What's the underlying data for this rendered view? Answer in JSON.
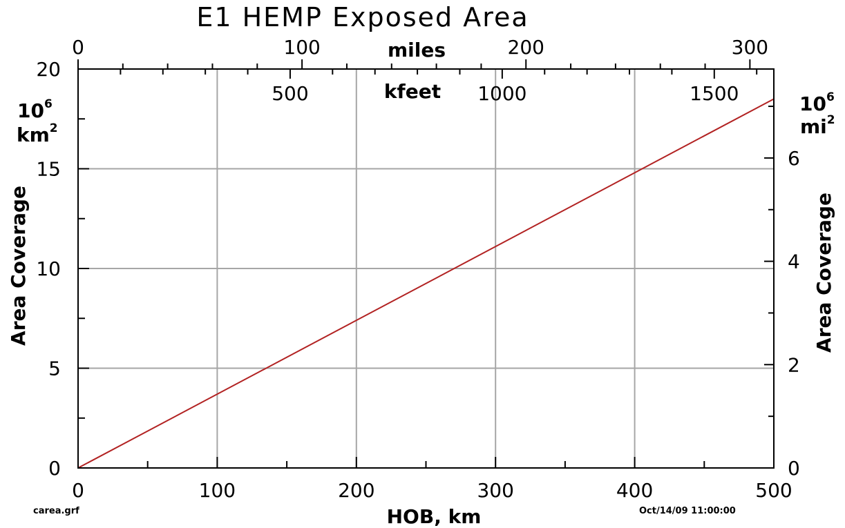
{
  "chart_data": {
    "type": "line",
    "title": "E1 HEMP Exposed Area",
    "xlabel": "HOB, km",
    "ylabel": "Area Coverage",
    "ylabel_right": "Area Coverage",
    "y_unit_base": "10",
    "y_unit_exp": "6",
    "y_unit_left": "km",
    "y_unit_right": "mi",
    "y_unit_sq": "2",
    "xlim": [
      0,
      500
    ],
    "ylim": [
      0,
      20
    ],
    "xticks": [
      0,
      100,
      200,
      300,
      400,
      500
    ],
    "yticks": [
      0,
      5,
      10,
      15,
      20
    ],
    "grid": true,
    "x_top_miles": {
      "label": "miles",
      "ticks": [
        0,
        100,
        200,
        300
      ]
    },
    "x_top_kfeet": {
      "label": "kfeet",
      "ticks": [
        500,
        1000,
        1500
      ]
    },
    "y_right": {
      "ticks": [
        0,
        2,
        4,
        6
      ],
      "factor": 0.386102
    },
    "series": [
      {
        "color": "#b22222",
        "x": [
          0,
          500
        ],
        "y": [
          0,
          18.5
        ]
      }
    ],
    "footer_left": "carea.grf",
    "footer_right": "Oct/14/09  11:00:00"
  }
}
